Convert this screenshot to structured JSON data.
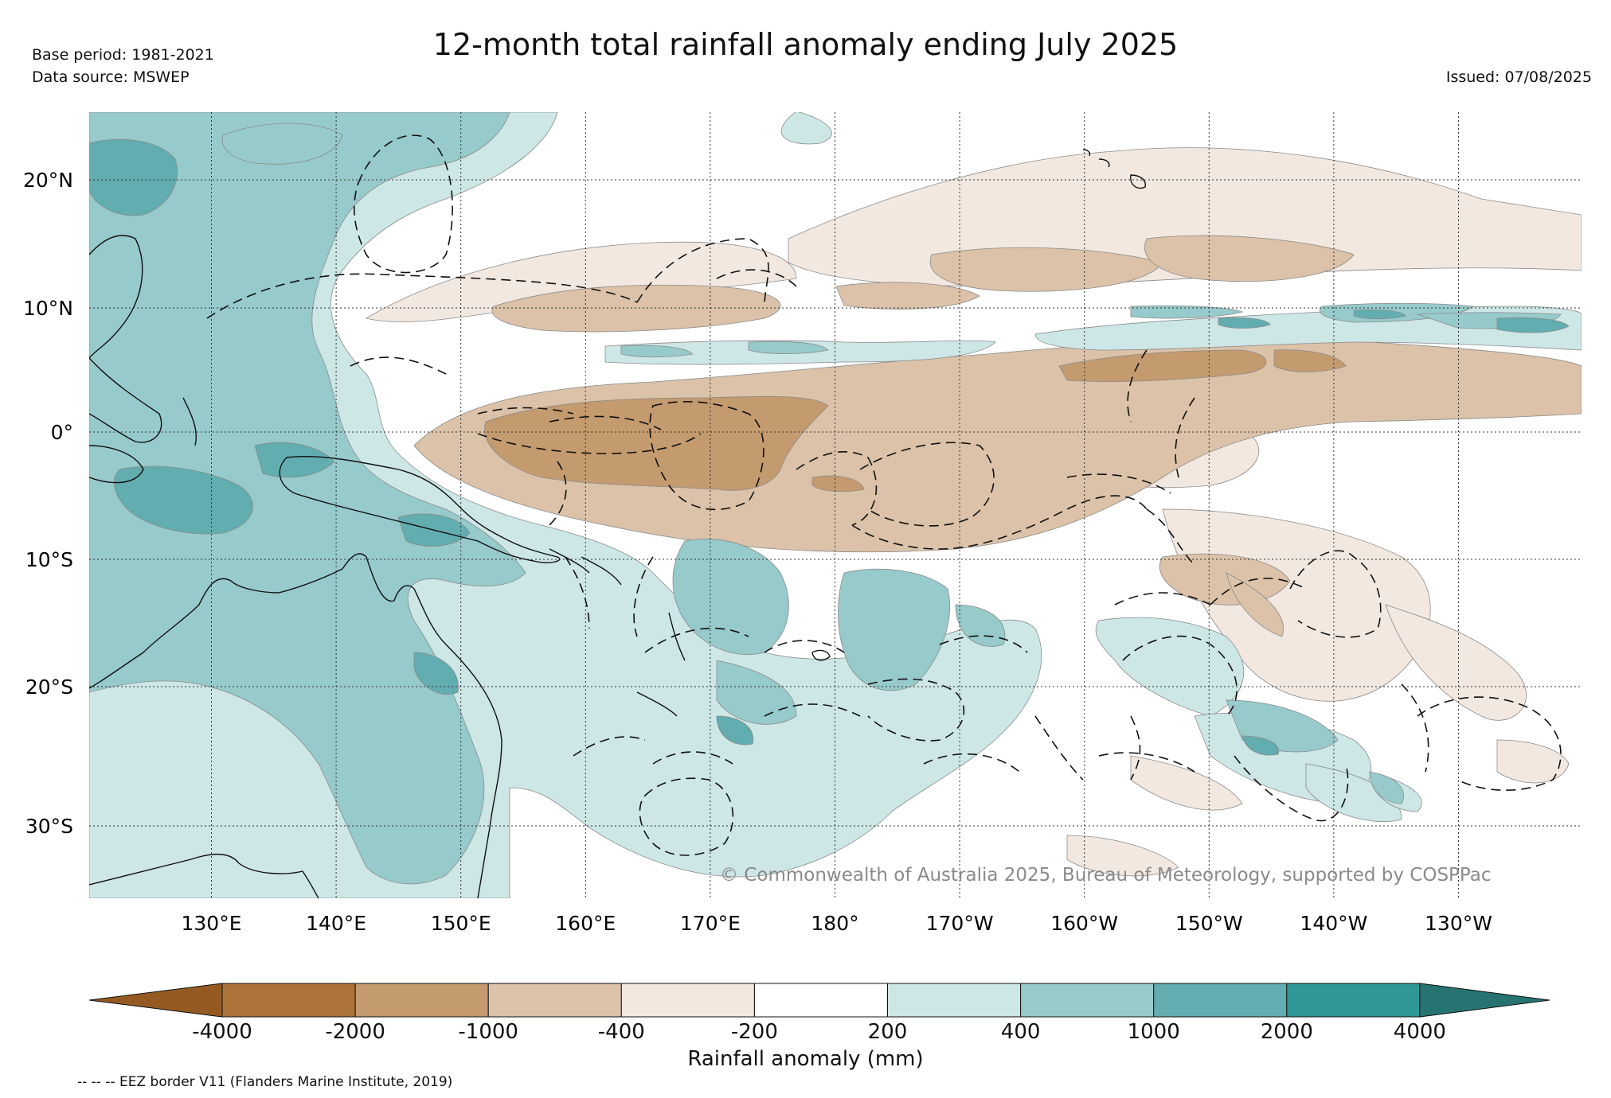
{
  "title": "12-month total rainfall anomaly ending July 2025",
  "base_period": "Base period: 1981-2021",
  "data_source": "Data source: MSWEP",
  "issued": "Issued: 07/08/2025",
  "copyright": "© Commonwealth of Australia 2025, Bureau of Meteorology, supported by COSPPac",
  "eez_note": "-- -- -- EEZ border V11 (Flanders Marine Institute, 2019)",
  "map": {
    "lon_labels": [
      "130°E",
      "140°E",
      "150°E",
      "160°E",
      "170°E",
      "180°",
      "170°W",
      "160°W",
      "150°W",
      "140°W",
      "130°W"
    ],
    "lat_labels": [
      "20°N",
      "10°N",
      "0°",
      "10°S",
      "20°S",
      "30°S"
    ]
  },
  "colorbar": {
    "title": "Rainfall anomaly (mm)",
    "tick_labels": [
      "-4000",
      "-2000",
      "-1000",
      "-400",
      "-200",
      "200",
      "400",
      "1000",
      "2000",
      "4000"
    ],
    "colors": {
      "below_min": "#955a22",
      "bins": [
        "#ad7439",
        "#c49a6f",
        "#dbc2a8",
        "#f2e8e0",
        "#ffffff",
        "#cde6e6",
        "#97cacb",
        "#62adaf",
        "#2f9896"
      ],
      "above_max": "#277371"
    }
  },
  "colors": {
    "dry_strong": "#c49a6f",
    "dry_moderate": "#dbc2a8",
    "dry_weak": "#f2e8e0",
    "wet_weak": "#cde6e6",
    "wet_moderate": "#97cacb",
    "wet_strong": "#62adaf"
  }
}
